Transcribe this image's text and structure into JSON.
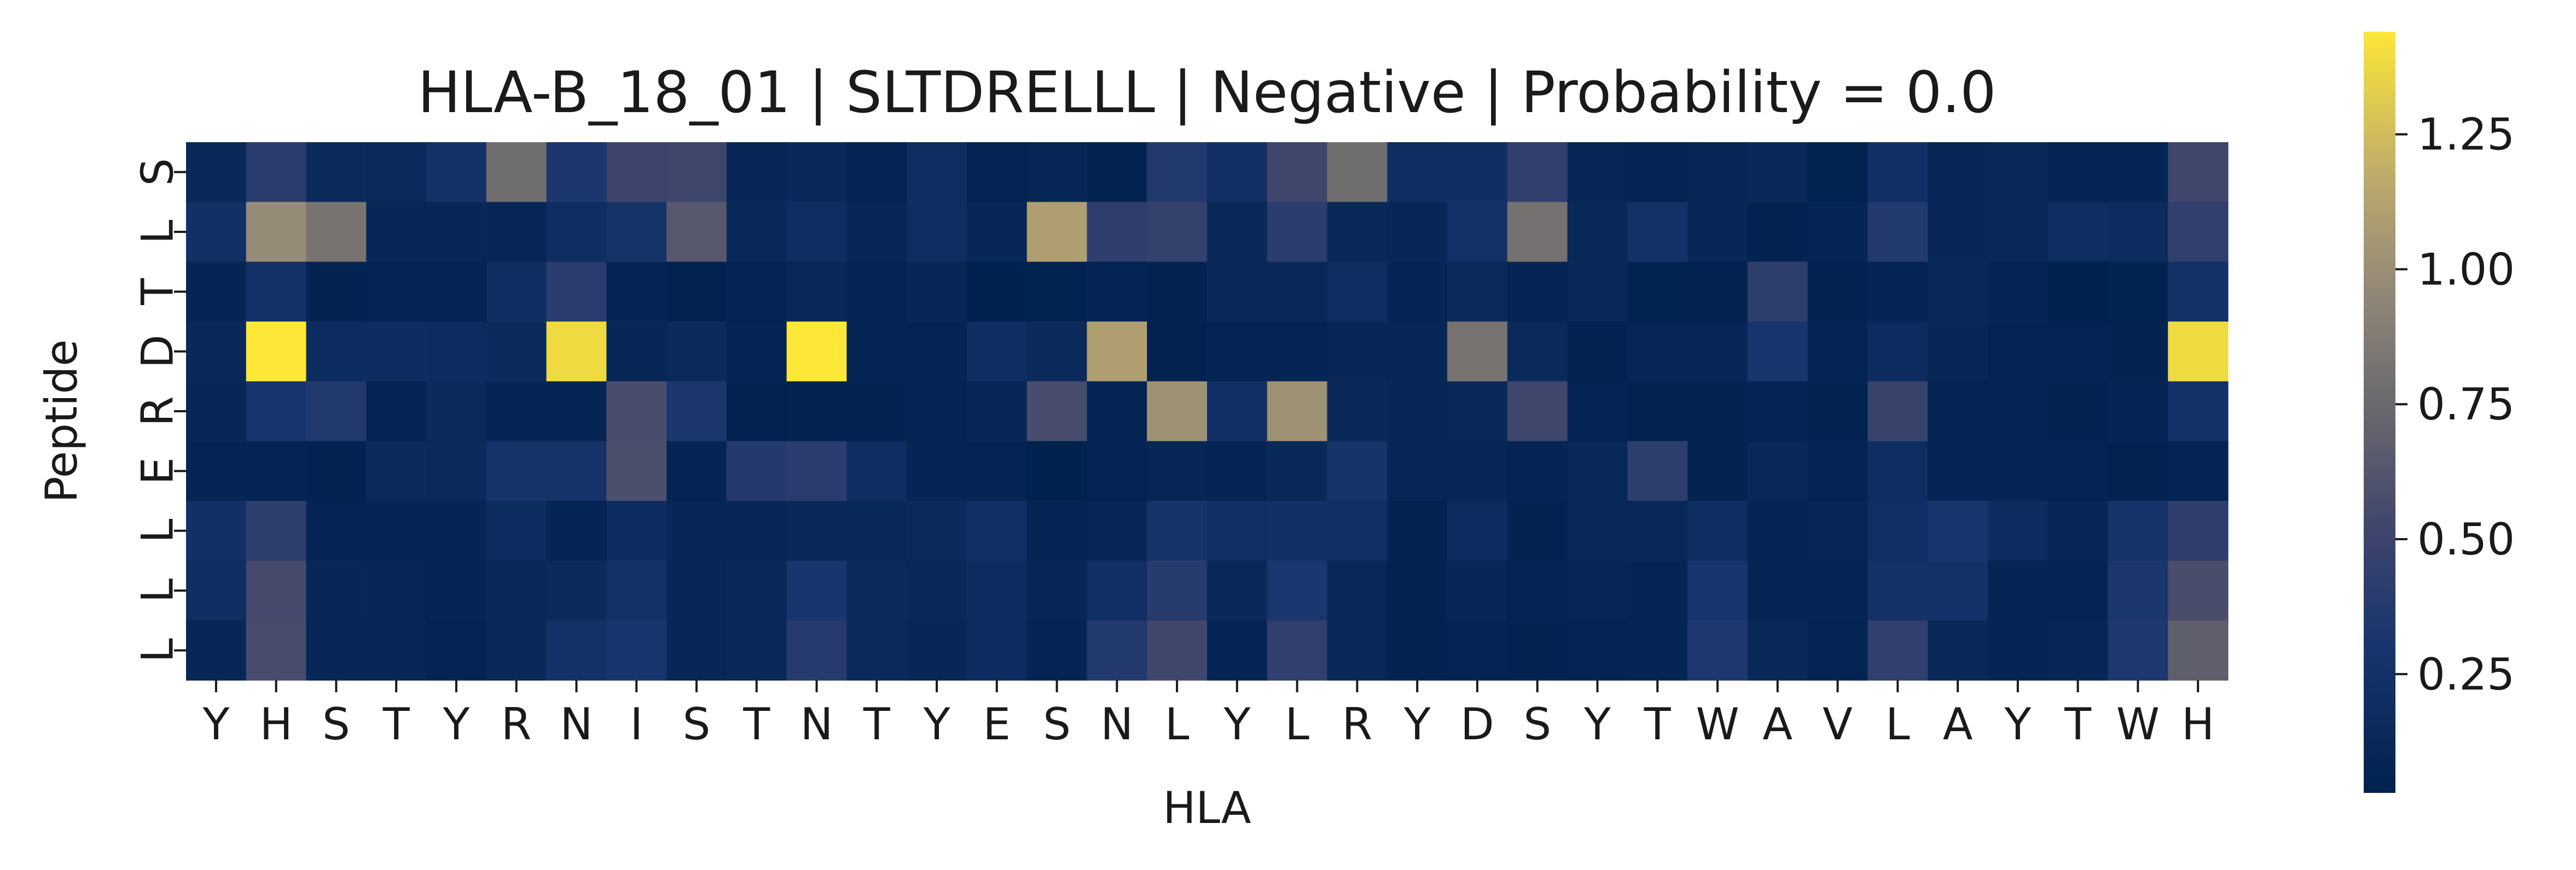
{
  "chart_data": {
    "type": "heatmap",
    "title": "HLA-B_18_01 | SLTDRELLL | Negative | Probability = 0.0",
    "xlabel": "HLA",
    "ylabel": "Peptide",
    "x_categories": [
      "Y",
      "H",
      "S",
      "T",
      "Y",
      "R",
      "N",
      "I",
      "S",
      "T",
      "N",
      "T",
      "Y",
      "E",
      "S",
      "N",
      "L",
      "Y",
      "L",
      "R",
      "Y",
      "D",
      "S",
      "Y",
      "T",
      "W",
      "A",
      "V",
      "L",
      "A",
      "Y",
      "T",
      "W",
      "H"
    ],
    "y_categories": [
      "S",
      "L",
      "T",
      "D",
      "R",
      "E",
      "L",
      "L",
      "L"
    ],
    "colormap": "cividis",
    "colorbar": {
      "min": 0.03,
      "max": 1.44,
      "ticks": [
        0.25,
        0.5,
        0.75,
        1.0,
        1.25
      ],
      "tick_labels": [
        "0.25",
        "0.50",
        "0.75",
        "1.00",
        "1.25"
      ]
    },
    "values": [
      [
        0.12,
        0.4,
        0.16,
        0.15,
        0.26,
        0.78,
        0.33,
        0.5,
        0.52,
        0.11,
        0.14,
        0.07,
        0.2,
        0.08,
        0.1,
        0.06,
        0.36,
        0.22,
        0.52,
        0.78,
        0.2,
        0.21,
        0.44,
        0.1,
        0.07,
        0.1,
        0.14,
        0.04,
        0.24,
        0.11,
        0.12,
        0.08,
        0.09,
        0.52
      ],
      [
        0.24,
        0.98,
        0.82,
        0.11,
        0.11,
        0.1,
        0.19,
        0.27,
        0.64,
        0.12,
        0.19,
        0.1,
        0.2,
        0.11,
        1.1,
        0.43,
        0.46,
        0.13,
        0.41,
        0.13,
        0.11,
        0.25,
        0.8,
        0.12,
        0.25,
        0.11,
        0.06,
        0.09,
        0.36,
        0.11,
        0.12,
        0.19,
        0.17,
        0.44
      ],
      [
        0.09,
        0.25,
        0.06,
        0.07,
        0.07,
        0.2,
        0.4,
        0.09,
        0.05,
        0.07,
        0.12,
        0.07,
        0.11,
        0.03,
        0.04,
        0.07,
        0.06,
        0.14,
        0.14,
        0.2,
        0.09,
        0.15,
        0.09,
        0.13,
        0.04,
        0.05,
        0.42,
        0.06,
        0.09,
        0.14,
        0.09,
        0.03,
        0.04,
        0.25
      ],
      [
        0.14,
        1.44,
        0.17,
        0.18,
        0.17,
        0.16,
        1.38,
        0.11,
        0.15,
        0.09,
        1.44,
        0.08,
        0.07,
        0.19,
        0.15,
        1.1,
        0.05,
        0.07,
        0.08,
        0.11,
        0.1,
        0.82,
        0.15,
        0.06,
        0.1,
        0.1,
        0.3,
        0.07,
        0.17,
        0.1,
        0.08,
        0.08,
        0.06,
        1.38
      ],
      [
        0.11,
        0.3,
        0.36,
        0.07,
        0.16,
        0.07,
        0.08,
        0.57,
        0.33,
        0.05,
        0.06,
        0.06,
        0.07,
        0.11,
        0.56,
        0.08,
        1.02,
        0.23,
        1.02,
        0.14,
        0.1,
        0.12,
        0.52,
        0.07,
        0.06,
        0.06,
        0.07,
        0.06,
        0.48,
        0.07,
        0.07,
        0.06,
        0.09,
        0.25
      ],
      [
        0.09,
        0.07,
        0.06,
        0.16,
        0.15,
        0.27,
        0.27,
        0.58,
        0.07,
        0.37,
        0.4,
        0.2,
        0.09,
        0.08,
        0.03,
        0.07,
        0.1,
        0.08,
        0.13,
        0.28,
        0.1,
        0.11,
        0.07,
        0.12,
        0.42,
        0.06,
        0.12,
        0.08,
        0.19,
        0.07,
        0.07,
        0.07,
        0.05,
        0.08
      ],
      [
        0.24,
        0.42,
        0.07,
        0.09,
        0.09,
        0.18,
        0.09,
        0.18,
        0.11,
        0.11,
        0.14,
        0.12,
        0.15,
        0.22,
        0.09,
        0.1,
        0.28,
        0.22,
        0.24,
        0.23,
        0.06,
        0.17,
        0.06,
        0.12,
        0.12,
        0.19,
        0.08,
        0.1,
        0.23,
        0.3,
        0.18,
        0.11,
        0.28,
        0.43
      ],
      [
        0.21,
        0.55,
        0.11,
        0.1,
        0.09,
        0.13,
        0.16,
        0.25,
        0.11,
        0.13,
        0.31,
        0.15,
        0.12,
        0.17,
        0.1,
        0.22,
        0.39,
        0.14,
        0.32,
        0.12,
        0.06,
        0.11,
        0.07,
        0.1,
        0.09,
        0.29,
        0.09,
        0.09,
        0.26,
        0.25,
        0.09,
        0.08,
        0.33,
        0.57
      ],
      [
        0.11,
        0.56,
        0.11,
        0.11,
        0.08,
        0.13,
        0.25,
        0.3,
        0.11,
        0.13,
        0.38,
        0.15,
        0.11,
        0.17,
        0.08,
        0.36,
        0.53,
        0.09,
        0.44,
        0.12,
        0.06,
        0.07,
        0.06,
        0.07,
        0.09,
        0.34,
        0.12,
        0.08,
        0.44,
        0.12,
        0.09,
        0.1,
        0.34,
        0.68
      ]
    ]
  }
}
